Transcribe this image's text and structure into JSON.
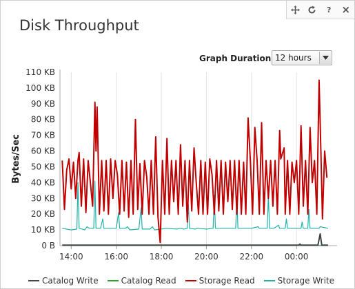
{
  "widget": {
    "title": "Disk Throughput",
    "toolbar": {
      "move_icon": "move-icon",
      "refresh_icon": "refresh-icon",
      "help_label": "?",
      "close_label": "×"
    },
    "duration": {
      "label": "Graph Duration:",
      "selected": "12 hours"
    }
  },
  "chart_data": {
    "type": "line",
    "ylabel": "Bytes/Sec",
    "yticks": [
      "0 B",
      "10 KB",
      "20 KB",
      "30 KB",
      "40 KB",
      "50 KB",
      "60 KB",
      "70 KB",
      "80 KB",
      "90 KB",
      "100 KB",
      "110 KB"
    ],
    "ylim": [
      0,
      110
    ],
    "xlim": [
      13.5,
      25.8
    ],
    "xticks": [
      {
        "v": 14,
        "label": "14:00"
      },
      {
        "v": 16,
        "label": "16:00"
      },
      {
        "v": 18,
        "label": "18:00"
      },
      {
        "v": 20,
        "label": "20:00"
      },
      {
        "v": 22,
        "label": "22:00"
      },
      {
        "v": 24,
        "label": "00:00"
      }
    ],
    "grid": "vertical",
    "legend_position": "bottom",
    "series": [
      {
        "name": "Catalog Write",
        "color": "#434348",
        "points": [
          [
            13.6,
            0.3
          ],
          [
            24.1,
            0.3
          ],
          [
            24.15,
            1.0
          ],
          [
            24.2,
            0.3
          ],
          [
            24.95,
            0.3
          ],
          [
            25.05,
            7.5
          ],
          [
            25.12,
            0.3
          ],
          [
            25.4,
            0.3
          ]
        ]
      },
      {
        "name": "Catalog Read",
        "color": "#2ca02c",
        "points": [
          [
            13.6,
            0.1
          ],
          [
            25.4,
            0.1
          ]
        ]
      },
      {
        "name": "Storage Read",
        "color": "#c00000",
        "points": [
          [
            13.6,
            54
          ],
          [
            13.7,
            23
          ],
          [
            13.8,
            48
          ],
          [
            13.9,
            55
          ],
          [
            14.0,
            36
          ],
          [
            14.1,
            53
          ],
          [
            14.2,
            30
          ],
          [
            14.3,
            54
          ],
          [
            14.35,
            59
          ],
          [
            14.45,
            25
          ],
          [
            14.55,
            55
          ],
          [
            14.65,
            21
          ],
          [
            14.75,
            54
          ],
          [
            14.85,
            40
          ],
          [
            14.95,
            25
          ],
          [
            15.05,
            91
          ],
          [
            15.1,
            60
          ],
          [
            15.15,
            88
          ],
          [
            15.25,
            20
          ],
          [
            15.35,
            54
          ],
          [
            15.45,
            22
          ],
          [
            15.55,
            54
          ],
          [
            15.65,
            20
          ],
          [
            15.75,
            55
          ],
          [
            15.85,
            30
          ],
          [
            15.95,
            54
          ],
          [
            16.05,
            45
          ],
          [
            16.15,
            20
          ],
          [
            16.25,
            54
          ],
          [
            16.35,
            22
          ],
          [
            16.45,
            53
          ],
          [
            16.55,
            18
          ],
          [
            16.65,
            54
          ],
          [
            16.75,
            20
          ],
          [
            16.85,
            80
          ],
          [
            16.95,
            23
          ],
          [
            17.05,
            52
          ],
          [
            17.15,
            20
          ],
          [
            17.25,
            54
          ],
          [
            17.35,
            44
          ],
          [
            17.45,
            20
          ],
          [
            17.55,
            54
          ],
          [
            17.65,
            20
          ],
          [
            17.75,
            69
          ],
          [
            17.85,
            18
          ],
          [
            17.95,
            2
          ],
          [
            18.05,
            54
          ],
          [
            18.15,
            20
          ],
          [
            18.25,
            68
          ],
          [
            18.35,
            20
          ],
          [
            18.45,
            54
          ],
          [
            18.55,
            28
          ],
          [
            18.65,
            54
          ],
          [
            18.75,
            20
          ],
          [
            18.85,
            64
          ],
          [
            18.95,
            25
          ],
          [
            19.05,
            54
          ],
          [
            19.15,
            15
          ],
          [
            19.25,
            54
          ],
          [
            19.35,
            22
          ],
          [
            19.45,
            62
          ],
          [
            19.55,
            40
          ],
          [
            19.65,
            20
          ],
          [
            19.75,
            54
          ],
          [
            19.85,
            20
          ],
          [
            19.95,
            53
          ],
          [
            20.05,
            20
          ],
          [
            20.15,
            55
          ],
          [
            20.25,
            45
          ],
          [
            20.35,
            20
          ],
          [
            20.45,
            54
          ],
          [
            20.55,
            22
          ],
          [
            20.65,
            54
          ],
          [
            20.75,
            20
          ],
          [
            20.85,
            53
          ],
          [
            20.95,
            28
          ],
          [
            21.05,
            54
          ],
          [
            21.15,
            23
          ],
          [
            21.25,
            54
          ],
          [
            21.35,
            20
          ],
          [
            21.45,
            54
          ],
          [
            21.55,
            20
          ],
          [
            21.65,
            53
          ],
          [
            21.75,
            20
          ],
          [
            21.85,
            81
          ],
          [
            21.95,
            54
          ],
          [
            22.05,
            20
          ],
          [
            22.15,
            75
          ],
          [
            22.25,
            54
          ],
          [
            22.35,
            20
          ],
          [
            22.45,
            78
          ],
          [
            22.55,
            20
          ],
          [
            22.65,
            54
          ],
          [
            22.75,
            30
          ],
          [
            22.85,
            54
          ],
          [
            22.95,
            25
          ],
          [
            23.05,
            54
          ],
          [
            23.15,
            20
          ],
          [
            23.25,
            73
          ],
          [
            23.3,
            55
          ],
          [
            23.45,
            62
          ],
          [
            23.5,
            20
          ],
          [
            23.6,
            54
          ],
          [
            23.7,
            20
          ],
          [
            23.8,
            53
          ],
          [
            23.9,
            40
          ],
          [
            24.0,
            54
          ],
          [
            24.1,
            20
          ],
          [
            24.2,
            76
          ],
          [
            24.3,
            25
          ],
          [
            24.4,
            54
          ],
          [
            24.5,
            20
          ],
          [
            24.6,
            75
          ],
          [
            24.7,
            40
          ],
          [
            24.8,
            54
          ],
          [
            24.9,
            20
          ],
          [
            25.0,
            105
          ],
          [
            25.08,
            60
          ],
          [
            25.15,
            17
          ],
          [
            25.25,
            60
          ],
          [
            25.35,
            43
          ]
        ]
      },
      {
        "name": "Storage Write",
        "color": "#20b2aa",
        "points": [
          [
            13.6,
            11
          ],
          [
            14.0,
            10
          ],
          [
            14.25,
            10.5
          ],
          [
            14.3,
            40
          ],
          [
            14.35,
            11
          ],
          [
            14.6,
            10
          ],
          [
            14.7,
            12
          ],
          [
            14.8,
            11
          ],
          [
            15.0,
            11
          ],
          [
            15.05,
            41
          ],
          [
            15.1,
            11
          ],
          [
            15.3,
            11
          ],
          [
            15.4,
            17
          ],
          [
            15.45,
            11
          ],
          [
            16.0,
            11
          ],
          [
            16.1,
            21
          ],
          [
            16.15,
            11
          ],
          [
            16.4,
            11
          ],
          [
            16.5,
            12
          ],
          [
            16.6,
            10
          ],
          [
            17.0,
            10.5
          ],
          [
            17.1,
            24
          ],
          [
            17.15,
            10.5
          ],
          [
            17.5,
            10.5
          ],
          [
            17.6,
            12
          ],
          [
            17.7,
            10
          ],
          [
            18.0,
            10.5
          ],
          [
            18.2,
            11
          ],
          [
            18.7,
            10.5
          ],
          [
            18.8,
            11
          ],
          [
            19.0,
            10.5
          ],
          [
            19.15,
            11
          ],
          [
            19.2,
            26
          ],
          [
            19.25,
            11
          ],
          [
            19.5,
            10.5
          ],
          [
            19.6,
            11
          ],
          [
            20.0,
            10.5
          ],
          [
            20.3,
            11
          ],
          [
            20.35,
            32
          ],
          [
            20.4,
            11
          ],
          [
            20.7,
            11
          ],
          [
            21.0,
            11
          ],
          [
            21.3,
            11
          ],
          [
            21.35,
            31
          ],
          [
            21.4,
            11
          ],
          [
            21.7,
            11
          ],
          [
            22.0,
            11
          ],
          [
            22.3,
            12
          ],
          [
            22.35,
            11
          ],
          [
            22.7,
            11
          ],
          [
            22.75,
            32
          ],
          [
            22.8,
            11
          ],
          [
            23.0,
            11
          ],
          [
            23.2,
            13
          ],
          [
            23.25,
            11
          ],
          [
            23.5,
            11
          ],
          [
            23.55,
            17
          ],
          [
            23.6,
            11
          ],
          [
            24.0,
            11
          ],
          [
            24.2,
            11
          ],
          [
            24.25,
            15
          ],
          [
            24.3,
            11
          ],
          [
            24.5,
            11
          ],
          [
            24.55,
            23
          ],
          [
            24.6,
            11
          ],
          [
            24.8,
            11
          ],
          [
            25.0,
            11
          ],
          [
            25.05,
            12
          ],
          [
            25.4,
            11
          ]
        ]
      }
    ]
  }
}
